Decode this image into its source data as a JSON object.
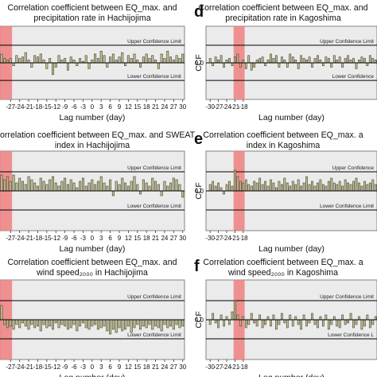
{
  "chart_data": [
    {
      "panel_letter": "",
      "type": "bar",
      "title_lines": [
        "Correlation coefficient between EQ_max. and",
        "precipitation rate in Hachijojima"
      ],
      "xlabel": "Lag number (day)",
      "ylabel": "",
      "x_ticks": [
        -27,
        -24,
        -21,
        -18,
        -15,
        -12,
        -9,
        -6,
        -3,
        0,
        3,
        6,
        9,
        12,
        15,
        18,
        21,
        24,
        27,
        30
      ],
      "y_ticks": [],
      "ylim": [
        -0.25,
        0.25
      ],
      "upper_confidence_limit": 0.12,
      "lower_confidence_limit": -0.12,
      "upper_label": "Upper Confidence Limit",
      "lower_label": "Lower Confidence Limit",
      "highlight_range": [
        -30,
        -27
      ],
      "x": [
        -30,
        -29,
        -28,
        -27,
        -26,
        -25,
        -24,
        -23,
        -22,
        -21,
        -20,
        -19,
        -18,
        -17,
        -16,
        -15,
        -14,
        -13,
        -12,
        -11,
        -10,
        -9,
        -8,
        -7,
        -6,
        -5,
        -4,
        -3,
        -2,
        -1,
        0,
        1,
        2,
        3,
        4,
        5,
        6,
        7,
        8,
        9,
        10,
        11,
        12,
        13,
        14,
        15,
        16,
        17,
        18,
        19,
        20,
        21,
        22,
        23,
        24,
        25,
        26,
        27,
        28,
        29,
        30
      ],
      "values": [
        0.06,
        0.03,
        0.02,
        0.03,
        -0.02,
        0.05,
        0.03,
        0.04,
        0.07,
        0.02,
        -0.03,
        0.05,
        0.04,
        0.06,
        0.02,
        -0.04,
        0.03,
        -0.08,
        -0.03,
        0.05,
        0.02,
        0.03,
        -0.05,
        0.04,
        0.02,
        -0.02,
        0.03,
        0.01,
        0.05,
        -0.04,
        0.02,
        0.06,
        0.03,
        0.08,
        0.05,
        -0.03,
        0.04,
        0.06,
        0.02,
        0.04,
        0.07,
        -0.02,
        0.05,
        0.03,
        0.06,
        0.02,
        -0.03,
        0.04,
        0.06,
        0.03,
        0.05,
        0.02,
        -0.04,
        0.06,
        0.03,
        0.08,
        0.04,
        0.02,
        0.05,
        0.03,
        0.06
      ]
    },
    {
      "panel_letter": "d",
      "type": "bar",
      "title_lines": [
        "Correlation coefficient between EQ_max. and",
        "precipitation rate in Kagoshima"
      ],
      "xlabel": "Lag number (day)",
      "ylabel": "CCF",
      "x_ticks": [
        -30,
        -27,
        -24,
        -21,
        -18
      ],
      "y_ticks": [
        0.0
      ],
      "ylim": [
        -0.25,
        0.25
      ],
      "upper_confidence_limit": 0.12,
      "lower_confidence_limit": -0.12,
      "upper_label": "Upper Confidence Limit",
      "lower_label": "Lower Confidence",
      "highlight_range": [
        -21,
        -18
      ],
      "x": [
        -30,
        -29,
        -28,
        -27,
        -26,
        -25,
        -24,
        -23,
        -22,
        -21,
        -20,
        -19,
        -18,
        -17,
        -16,
        -15,
        -14,
        -13,
        -12,
        -11,
        -10,
        -9,
        -8,
        -7,
        -6,
        -5,
        -4,
        -3,
        -2,
        -1,
        0,
        1,
        2,
        3,
        4,
        5,
        6,
        7,
        8,
        9,
        10,
        11,
        12,
        13,
        14,
        15,
        16,
        17,
        18,
        19,
        20,
        21,
        22,
        23,
        24,
        25,
        26,
        27,
        28,
        29,
        30
      ],
      "values": [
        0.03,
        -0.02,
        0.04,
        0.02,
        0.05,
        -0.03,
        0.02,
        0.03,
        -0.02,
        0.04,
        0.06,
        -0.03,
        0.02,
        -0.04,
        0.05,
        -0.05,
        -0.03,
        0.02,
        0.03,
        0.04,
        -0.02,
        0.02,
        0.06,
        0.03,
        0.05,
        -0.03,
        0.04,
        0.02,
        -0.03,
        0.06,
        0.04,
        0.02,
        -0.04,
        0.05,
        0.03,
        0.02,
        0.04,
        -0.03,
        0.03,
        0.05,
        0.02,
        -0.02,
        0.04,
        0.03,
        -0.03,
        0.05,
        0.02,
        0.04,
        -0.03,
        0.03,
        0.05,
        0.02,
        0.03,
        -0.04,
        0.02,
        0.04,
        0.03,
        -0.02,
        0.05,
        0.03,
        0.02
      ]
    },
    {
      "panel_letter": "",
      "type": "bar",
      "title_lines": [
        "orrelation coefficient between EQ_max. and SWEAT",
        "index in Hachijojima"
      ],
      "xlabel": "Lag number (day)",
      "ylabel": "",
      "x_ticks": [
        -27,
        -24,
        -21,
        -18,
        -15,
        -12,
        -9,
        -6,
        -3,
        0,
        3,
        6,
        9,
        12,
        15,
        18,
        21,
        24,
        27,
        30
      ],
      "y_ticks": [],
      "ylim": [
        -0.25,
        0.25
      ],
      "upper_confidence_limit": 0.12,
      "lower_confidence_limit": -0.12,
      "upper_label": "Upper Confidence Limit",
      "lower_label": "Lower Confidence Limit",
      "highlight_range": [
        -30,
        -27
      ],
      "x": [
        -30,
        -29,
        -28,
        -27,
        -26,
        -25,
        -24,
        -23,
        -22,
        -21,
        -20,
        -19,
        -18,
        -17,
        -16,
        -15,
        -14,
        -13,
        -12,
        -11,
        -10,
        -9,
        -8,
        -7,
        -6,
        -5,
        -4,
        -3,
        -2,
        -1,
        0,
        1,
        2,
        3,
        4,
        5,
        6,
        7,
        8,
        9,
        10,
        11,
        12,
        13,
        14,
        15,
        16,
        17,
        18,
        19,
        20,
        21,
        22,
        23,
        24,
        25,
        26,
        27,
        28,
        29,
        30
      ],
      "values": [
        0.1,
        0.07,
        0.09,
        0.06,
        0.1,
        0.05,
        0.08,
        0.06,
        0.04,
        0.09,
        0.07,
        0.05,
        0.03,
        0.08,
        0.06,
        0.04,
        0.07,
        0.09,
        0.05,
        0.03,
        0.06,
        0.08,
        0.04,
        0.07,
        0.05,
        0.02,
        0.06,
        0.08,
        0.03,
        0.05,
        0.07,
        0.04,
        0.06,
        0.09,
        0.05,
        0.03,
        0.07,
        -0.03,
        0.06,
        0.04,
        0.08,
        0.05,
        0.03,
        0.06,
        0.09,
        0.04,
        -0.02,
        0.07,
        0.05,
        0.03,
        0.08,
        0.06,
        0.04,
        -0.03,
        0.06,
        0.03,
        0.05,
        0.08,
        0.07,
        0.04,
        -0.04
      ]
    },
    {
      "panel_letter": "e",
      "type": "bar",
      "title_lines": [
        "Correlation coefficient between EQ_max. a",
        "index in Kagoshima"
      ],
      "xlabel": "Lag number (day)",
      "ylabel": "CCF",
      "x_ticks": [
        -30,
        -27,
        -24,
        -21,
        -18
      ],
      "y_ticks": [
        0.0
      ],
      "ylim": [
        -0.25,
        0.25
      ],
      "upper_confidence_limit": 0.12,
      "lower_confidence_limit": -0.12,
      "upper_label": "Upper Confidence",
      "lower_label": "Lower Confidence Limit",
      "highlight_range": [
        -21,
        -18
      ],
      "x": [
        -30,
        -29,
        -28,
        -27,
        -26,
        -25,
        -24,
        -23,
        -22,
        -21,
        -20,
        -19,
        -18,
        -17,
        -16,
        -15,
        -14,
        -13,
        -12,
        -11,
        -10,
        -9,
        -8,
        -7,
        -6,
        -5,
        -4,
        -3,
        -2,
        -1,
        0,
        1,
        2,
        3,
        4,
        5,
        6,
        7,
        8,
        9,
        10,
        11,
        12,
        13,
        14,
        15,
        16,
        17,
        18,
        19,
        20,
        21,
        22,
        23,
        24,
        25,
        26,
        27,
        28,
        29,
        30
      ],
      "values": [
        0.04,
        0.06,
        0.03,
        0.05,
        0.02,
        -0.02,
        0.04,
        0.06,
        0.03,
        0.13,
        0.09,
        0.06,
        0.05,
        0.07,
        0.04,
        0.03,
        0.06,
        0.05,
        0.08,
        0.04,
        0.06,
        0.03,
        0.07,
        0.05,
        0.02,
        0.06,
        0.04,
        0.08,
        0.05,
        0.03,
        0.06,
        0.04,
        0.07,
        0.03,
        0.05,
        0.09,
        0.04,
        0.06,
        0.03,
        0.05,
        0.07,
        0.04,
        0.03,
        0.06,
        0.08,
        0.05,
        0.04,
        0.06,
        0.03,
        0.07,
        0.05,
        0.04,
        0.06,
        0.08,
        0.05,
        0.03,
        0.06,
        0.04,
        0.05,
        0.07,
        0.04
      ]
    },
    {
      "panel_letter": "",
      "type": "bar",
      "title_lines": [
        "Correlation coefficient between EQ_max. and",
        "wind speed₂₀₀₀ in Hachijojima"
      ],
      "xlabel": "Lag number (day)",
      "ylabel": "",
      "x_ticks": [
        -27,
        -24,
        -21,
        -18,
        -15,
        -12,
        -9,
        -6,
        -3,
        0,
        3,
        6,
        9,
        12,
        15,
        18,
        21,
        24,
        27,
        30
      ],
      "y_ticks": [],
      "ylim": [
        -0.25,
        0.25
      ],
      "upper_confidence_limit": 0.12,
      "lower_confidence_limit": -0.12,
      "upper_label": "Upper Confidence Limit",
      "lower_label": "Lower Confidence Limit",
      "highlight_range": [
        -30,
        -27
      ],
      "x": [
        -30,
        -29,
        -28,
        -27,
        -26,
        -25,
        -24,
        -23,
        -22,
        -21,
        -20,
        -19,
        -18,
        -17,
        -16,
        -15,
        -14,
        -13,
        -12,
        -11,
        -10,
        -9,
        -8,
        -7,
        -6,
        -5,
        -4,
        -3,
        -2,
        -1,
        0,
        1,
        2,
        3,
        4,
        5,
        6,
        7,
        8,
        9,
        10,
        11,
        12,
        13,
        14,
        15,
        16,
        17,
        18,
        19,
        20,
        21,
        22,
        23,
        24,
        25,
        26,
        27,
        28,
        29,
        30
      ],
      "values": [
        0.09,
        -0.03,
        -0.05,
        -0.04,
        -0.06,
        -0.03,
        -0.05,
        -0.02,
        -0.04,
        -0.06,
        -0.03,
        -0.05,
        -0.04,
        -0.07,
        -0.03,
        -0.05,
        -0.04,
        -0.06,
        -0.02,
        -0.05,
        -0.03,
        -0.04,
        -0.06,
        -0.05,
        -0.03,
        -0.07,
        -0.04,
        -0.02,
        -0.05,
        -0.06,
        -0.04,
        -0.03,
        -0.06,
        -0.05,
        -0.04,
        -0.07,
        -0.09,
        -0.06,
        -0.08,
        -0.05,
        -0.07,
        -0.06,
        -0.04,
        -0.08,
        -0.05,
        -0.03,
        -0.06,
        -0.04,
        -0.05,
        -0.03,
        -0.06,
        -0.04,
        -0.05,
        -0.07,
        -0.03,
        -0.05,
        -0.04,
        -0.06,
        -0.03,
        -0.05,
        -0.04
      ]
    },
    {
      "panel_letter": "f",
      "type": "bar",
      "title_lines": [
        "Correlation coefficient between EQ_max. a",
        "wind speed₂₀₀₀ in Kagoshima"
      ],
      "xlabel": "Lag number (day)",
      "ylabel": "CCF",
      "x_ticks": [
        -30,
        -27,
        -24,
        -21,
        -18
      ],
      "y_ticks": [
        0.0
      ],
      "ylim": [
        -0.25,
        0.25
      ],
      "upper_confidence_limit": 0.12,
      "lower_confidence_limit": -0.12,
      "upper_label": "Upper Confidence Limit",
      "lower_label": "Lower Confidence L",
      "highlight_range": [
        -21,
        -18
      ],
      "x": [
        -30,
        -29,
        -28,
        -27,
        -26,
        -25,
        -24,
        -23,
        -22,
        -21,
        -20,
        -19,
        -18,
        -17,
        -16,
        -15,
        -14,
        -13,
        -12,
        -11,
        -10,
        -9,
        -8,
        -7,
        -6,
        -5,
        -4,
        -3,
        -2,
        -1,
        0,
        1,
        2,
        3,
        4,
        5,
        6,
        7,
        8,
        9,
        10,
        11,
        12,
        13,
        14,
        15,
        16,
        17,
        18,
        19,
        20,
        21,
        22,
        23,
        24,
        25,
        26,
        27,
        28,
        29,
        30
      ],
      "values": [
        -0.03,
        0.04,
        -0.02,
        -0.05,
        0.03,
        -0.04,
        0.02,
        -0.03,
        0.05,
        0.12,
        0.03,
        -0.04,
        0.02,
        -0.05,
        -0.03,
        0.04,
        -0.02,
        -0.04,
        0.03,
        -0.05,
        -0.03,
        0.02,
        -0.04,
        0.03,
        -0.06,
        -0.03,
        0.04,
        -0.02,
        -0.05,
        0.03,
        -0.04,
        0.02,
        -0.03,
        -0.06,
        0.03,
        -0.04,
        -0.02,
        0.04,
        -0.03,
        -0.05,
        0.02,
        -0.04,
        0.03,
        -0.06,
        -0.03,
        0.02,
        -0.04,
        -0.05,
        0.03,
        -0.03,
        -0.02,
        0.04,
        -0.05,
        -0.03,
        0.02,
        -0.06,
        -0.04,
        0.03,
        -0.05,
        -0.03,
        0.02
      ]
    }
  ],
  "colors": {
    "bar_fill": "#c8c49a",
    "bar_stroke": "#3a3a24",
    "plot_bg": "#ebebeb",
    "highlight": "#f08080",
    "line": "#000000"
  }
}
